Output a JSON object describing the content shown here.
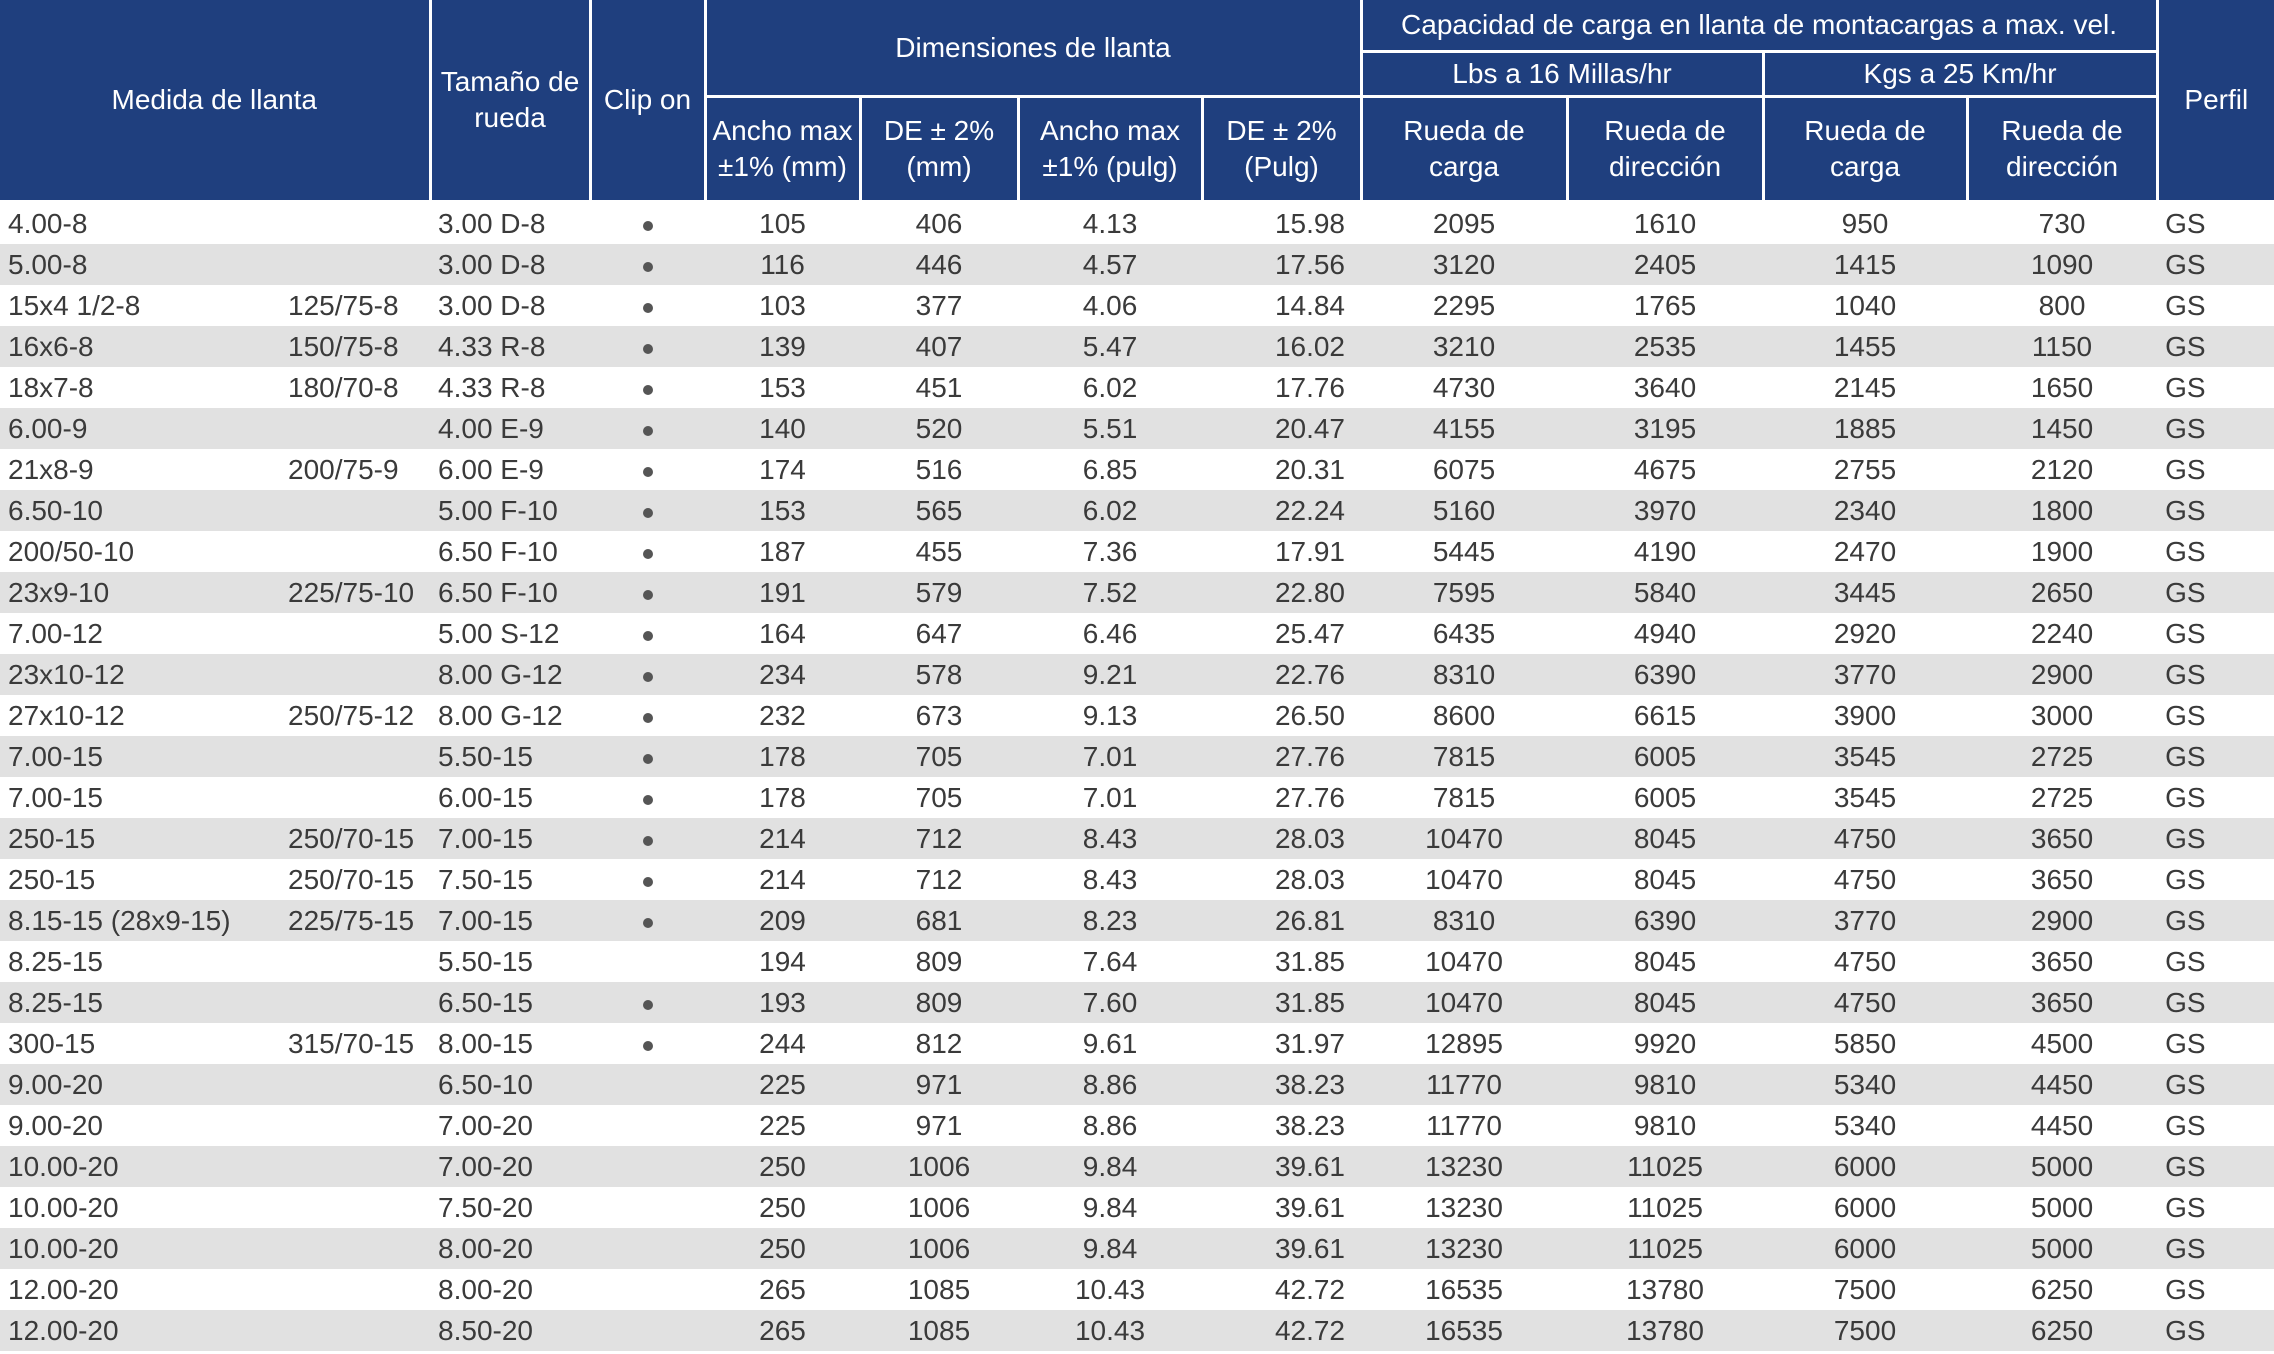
{
  "header": {
    "medida": "Medida de llanta",
    "tamano": "Tamaño de rueda",
    "clip": "Clip on",
    "dimensiones": "Dimensiones de llanta",
    "capacidad": "Capacidad de carga en llanta de montacargas a max. vel.",
    "perfil": "Perfil",
    "lbs": "Lbs a 16 Millas/hr",
    "kgs": "Kgs a 25 Km/hr",
    "ancho_mm": "Ancho max ±1% (mm)",
    "de_mm": "DE ± 2% (mm)",
    "ancho_pulg": "Ancho max ±1% (pulg)",
    "de_pulg": "DE ± 2% (Pulg)",
    "rueda_carga_lbs": "Rueda de carga",
    "rueda_dir_lbs": "Rueda de dirección",
    "rueda_carga_kgs": "Rueda de carga",
    "rueda_dir_kgs": "Rueda de dirección"
  },
  "rows": [
    {
      "medida": "4.00-8",
      "alt": "",
      "rueda": "3.00 D-8",
      "clip": true,
      "ancho_mm": "105",
      "de_mm": "406",
      "ancho_pulg": "4.13",
      "de_pulg": "15.98",
      "lbs_carga": "2095",
      "lbs_dir": "1610",
      "kgs_carga": "950",
      "kgs_dir": "730",
      "perfil": "GS"
    },
    {
      "medida": "5.00-8",
      "alt": "",
      "rueda": "3.00 D-8",
      "clip": true,
      "ancho_mm": "116",
      "de_mm": "446",
      "ancho_pulg": "4.57",
      "de_pulg": "17.56",
      "lbs_carga": "3120",
      "lbs_dir": "2405",
      "kgs_carga": "1415",
      "kgs_dir": "1090",
      "perfil": "GS"
    },
    {
      "medida": "15x4 1/2-8",
      "alt": "125/75-8",
      "rueda": "3.00 D-8",
      "clip": true,
      "ancho_mm": "103",
      "de_mm": "377",
      "ancho_pulg": "4.06",
      "de_pulg": "14.84",
      "lbs_carga": "2295",
      "lbs_dir": "1765",
      "kgs_carga": "1040",
      "kgs_dir": "800",
      "perfil": "GS"
    },
    {
      "medida": "16x6-8",
      "alt": "150/75-8",
      "rueda": "4.33 R-8",
      "clip": true,
      "ancho_mm": "139",
      "de_mm": "407",
      "ancho_pulg": "5.47",
      "de_pulg": "16.02",
      "lbs_carga": "3210",
      "lbs_dir": "2535",
      "kgs_carga": "1455",
      "kgs_dir": "1150",
      "perfil": "GS"
    },
    {
      "medida": "18x7-8",
      "alt": "180/70-8",
      "rueda": "4.33 R-8",
      "clip": true,
      "ancho_mm": "153",
      "de_mm": "451",
      "ancho_pulg": "6.02",
      "de_pulg": "17.76",
      "lbs_carga": "4730",
      "lbs_dir": "3640",
      "kgs_carga": "2145",
      "kgs_dir": "1650",
      "perfil": "GS"
    },
    {
      "medida": "6.00-9",
      "alt": "",
      "rueda": "4.00 E-9",
      "clip": true,
      "ancho_mm": "140",
      "de_mm": "520",
      "ancho_pulg": "5.51",
      "de_pulg": "20.47",
      "lbs_carga": "4155",
      "lbs_dir": "3195",
      "kgs_carga": "1885",
      "kgs_dir": "1450",
      "perfil": "GS"
    },
    {
      "medida": "21x8-9",
      "alt": "200/75-9",
      "rueda": "6.00 E-9",
      "clip": true,
      "ancho_mm": "174",
      "de_mm": "516",
      "ancho_pulg": "6.85",
      "de_pulg": "20.31",
      "lbs_carga": "6075",
      "lbs_dir": "4675",
      "kgs_carga": "2755",
      "kgs_dir": "2120",
      "perfil": "GS"
    },
    {
      "medida": "6.50-10",
      "alt": "",
      "rueda": "5.00 F-10",
      "clip": true,
      "ancho_mm": "153",
      "de_mm": "565",
      "ancho_pulg": "6.02",
      "de_pulg": "22.24",
      "lbs_carga": "5160",
      "lbs_dir": "3970",
      "kgs_carga": "2340",
      "kgs_dir": "1800",
      "perfil": "GS"
    },
    {
      "medida": "200/50-10",
      "alt": "",
      "rueda": "6.50 F-10",
      "clip": true,
      "ancho_mm": "187",
      "de_mm": "455",
      "ancho_pulg": "7.36",
      "de_pulg": "17.91",
      "lbs_carga": "5445",
      "lbs_dir": "4190",
      "kgs_carga": "2470",
      "kgs_dir": "1900",
      "perfil": "GS"
    },
    {
      "medida": "23x9-10",
      "alt": "225/75-10",
      "rueda": "6.50 F-10",
      "clip": true,
      "ancho_mm": "191",
      "de_mm": "579",
      "ancho_pulg": "7.52",
      "de_pulg": "22.80",
      "lbs_carga": "7595",
      "lbs_dir": "5840",
      "kgs_carga": "3445",
      "kgs_dir": "2650",
      "perfil": "GS"
    },
    {
      "medida": "7.00-12",
      "alt": "",
      "rueda": "5.00 S-12",
      "clip": true,
      "ancho_mm": "164",
      "de_mm": "647",
      "ancho_pulg": "6.46",
      "de_pulg": "25.47",
      "lbs_carga": "6435",
      "lbs_dir": "4940",
      "kgs_carga": "2920",
      "kgs_dir": "2240",
      "perfil": "GS"
    },
    {
      "medida": "23x10-12",
      "alt": "",
      "rueda": "8.00 G-12",
      "clip": true,
      "ancho_mm": "234",
      "de_mm": "578",
      "ancho_pulg": "9.21",
      "de_pulg": "22.76",
      "lbs_carga": "8310",
      "lbs_dir": "6390",
      "kgs_carga": "3770",
      "kgs_dir": "2900",
      "perfil": "GS"
    },
    {
      "medida": "27x10-12",
      "alt": "250/75-12",
      "rueda": "8.00 G-12",
      "clip": true,
      "ancho_mm": "232",
      "de_mm": "673",
      "ancho_pulg": "9.13",
      "de_pulg": "26.50",
      "lbs_carga": "8600",
      "lbs_dir": "6615",
      "kgs_carga": "3900",
      "kgs_dir": "3000",
      "perfil": "GS"
    },
    {
      "medida": "7.00-15",
      "alt": "",
      "rueda": "5.50-15",
      "clip": true,
      "ancho_mm": "178",
      "de_mm": "705",
      "ancho_pulg": "7.01",
      "de_pulg": "27.76",
      "lbs_carga": "7815",
      "lbs_dir": "6005",
      "kgs_carga": "3545",
      "kgs_dir": "2725",
      "perfil": "GS"
    },
    {
      "medida": "7.00-15",
      "alt": "",
      "rueda": "6.00-15",
      "clip": true,
      "ancho_mm": "178",
      "de_mm": "705",
      "ancho_pulg": "7.01",
      "de_pulg": "27.76",
      "lbs_carga": "7815",
      "lbs_dir": "6005",
      "kgs_carga": "3545",
      "kgs_dir": "2725",
      "perfil": "GS"
    },
    {
      "medida": "250-15",
      "alt": "250/70-15",
      "rueda": "7.00-15",
      "clip": true,
      "ancho_mm": "214",
      "de_mm": "712",
      "ancho_pulg": "8.43",
      "de_pulg": "28.03",
      "lbs_carga": "10470",
      "lbs_dir": "8045",
      "kgs_carga": "4750",
      "kgs_dir": "3650",
      "perfil": "GS"
    },
    {
      "medida": "250-15",
      "alt": "250/70-15",
      "rueda": "7.50-15",
      "clip": true,
      "ancho_mm": "214",
      "de_mm": "712",
      "ancho_pulg": "8.43",
      "de_pulg": "28.03",
      "lbs_carga": "10470",
      "lbs_dir": "8045",
      "kgs_carga": "4750",
      "kgs_dir": "3650",
      "perfil": "GS"
    },
    {
      "medida": "8.15-15 (28x9-15)",
      "alt": "225/75-15",
      "rueda": "7.00-15",
      "clip": true,
      "ancho_mm": "209",
      "de_mm": "681",
      "ancho_pulg": "8.23",
      "de_pulg": "26.81",
      "lbs_carga": "8310",
      "lbs_dir": "6390",
      "kgs_carga": "3770",
      "kgs_dir": "2900",
      "perfil": "GS"
    },
    {
      "medida": "8.25-15",
      "alt": "",
      "rueda": "5.50-15",
      "clip": false,
      "ancho_mm": "194",
      "de_mm": "809",
      "ancho_pulg": "7.64",
      "de_pulg": "31.85",
      "lbs_carga": "10470",
      "lbs_dir": "8045",
      "kgs_carga": "4750",
      "kgs_dir": "3650",
      "perfil": "GS"
    },
    {
      "medida": "8.25-15",
      "alt": "",
      "rueda": "6.50-15",
      "clip": true,
      "ancho_mm": "193",
      "de_mm": "809",
      "ancho_pulg": "7.60",
      "de_pulg": "31.85",
      "lbs_carga": "10470",
      "lbs_dir": "8045",
      "kgs_carga": "4750",
      "kgs_dir": "3650",
      "perfil": "GS"
    },
    {
      "medida": "300-15",
      "alt": "315/70-15",
      "rueda": "8.00-15",
      "clip": true,
      "ancho_mm": "244",
      "de_mm": "812",
      "ancho_pulg": "9.61",
      "de_pulg": "31.97",
      "lbs_carga": "12895",
      "lbs_dir": "9920",
      "kgs_carga": "5850",
      "kgs_dir": "4500",
      "perfil": "GS"
    },
    {
      "medida": "9.00-20",
      "alt": "",
      "rueda": "6.50-10",
      "clip": false,
      "ancho_mm": "225",
      "de_mm": "971",
      "ancho_pulg": "8.86",
      "de_pulg": "38.23",
      "lbs_carga": "11770",
      "lbs_dir": "9810",
      "kgs_carga": "5340",
      "kgs_dir": "4450",
      "perfil": "GS"
    },
    {
      "medida": "9.00-20",
      "alt": "",
      "rueda": "7.00-20",
      "clip": false,
      "ancho_mm": "225",
      "de_mm": "971",
      "ancho_pulg": "8.86",
      "de_pulg": "38.23",
      "lbs_carga": "11770",
      "lbs_dir": "9810",
      "kgs_carga": "5340",
      "kgs_dir": "4450",
      "perfil": "GS"
    },
    {
      "medida": "10.00-20",
      "alt": "",
      "rueda": "7.00-20",
      "clip": false,
      "ancho_mm": "250",
      "de_mm": "1006",
      "ancho_pulg": "9.84",
      "de_pulg": "39.61",
      "lbs_carga": "13230",
      "lbs_dir": "11025",
      "kgs_carga": "6000",
      "kgs_dir": "5000",
      "perfil": "GS"
    },
    {
      "medida": "10.00-20",
      "alt": "",
      "rueda": "7.50-20",
      "clip": false,
      "ancho_mm": "250",
      "de_mm": "1006",
      "ancho_pulg": "9.84",
      "de_pulg": "39.61",
      "lbs_carga": "13230",
      "lbs_dir": "11025",
      "kgs_carga": "6000",
      "kgs_dir": "5000",
      "perfil": "GS"
    },
    {
      "medida": "10.00-20",
      "alt": "",
      "rueda": "8.00-20",
      "clip": false,
      "ancho_mm": "250",
      "de_mm": "1006",
      "ancho_pulg": "9.84",
      "de_pulg": "39.61",
      "lbs_carga": "13230",
      "lbs_dir": "11025",
      "kgs_carga": "6000",
      "kgs_dir": "5000",
      "perfil": "GS"
    },
    {
      "medida": "12.00-20",
      "alt": "",
      "rueda": "8.00-20",
      "clip": false,
      "ancho_mm": "265",
      "de_mm": "1085",
      "ancho_pulg": "10.43",
      "de_pulg": "42.72",
      "lbs_carga": "16535",
      "lbs_dir": "13780",
      "kgs_carga": "7500",
      "kgs_dir": "6250",
      "perfil": "GS"
    },
    {
      "medida": "12.00-20",
      "alt": "",
      "rueda": "8.50-20",
      "clip": false,
      "ancho_mm": "265",
      "de_mm": "1085",
      "ancho_pulg": "10.43",
      "de_pulg": "42.72",
      "lbs_carga": "16535",
      "lbs_dir": "13780",
      "kgs_carga": "7500",
      "kgs_dir": "6250",
      "perfil": "GS"
    }
  ]
}
